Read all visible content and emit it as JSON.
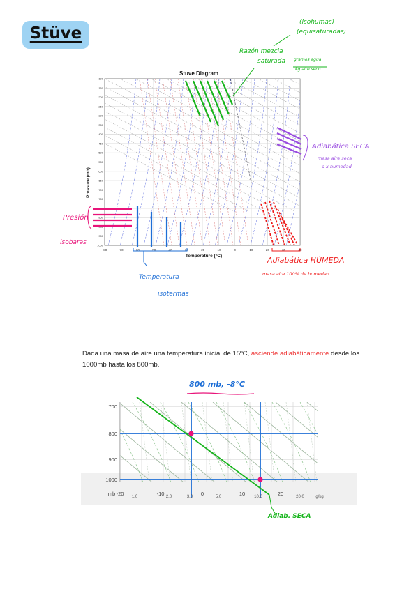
{
  "title": "Stüve",
  "upper_chart": {
    "title": "Stuve Diagram",
    "ylabel": "Pressure (mb)",
    "xlabel": "Temperature (°C)",
    "x_ticks": [
      "-80",
      "-70",
      "-60",
      "-50",
      "-40",
      "-30",
      "-20",
      "-10",
      "0",
      "10",
      "20",
      "30",
      "40"
    ],
    "y_ticks": [
      "100",
      "150",
      "200",
      "250",
      "300",
      "350",
      "400",
      "450",
      "500",
      "550",
      "600",
      "650",
      "700",
      "750",
      "800",
      "850",
      "900",
      "950",
      "1000"
    ]
  },
  "annotations": {
    "isohumas_1": "(isohumas)",
    "isohumas_2": "(equisaturadas)",
    "razon_1": "Razón mezcla",
    "razon_2": "saturada",
    "razon_3": "gramos agua",
    "razon_4": "kg aire seco",
    "adiabatica_seca": "Adiabática SECA",
    "seca_note_1": "masa aire seca",
    "seca_note_2": "o x humedad",
    "presion": "Presión",
    "isobaras": "isobaras",
    "temperatura": "Temperatura",
    "isotermas": "isotermas",
    "adiabatica_humeda": "Adiabática HÚMEDA",
    "humeda_note": "masa aire 100% de humedad"
  },
  "paragraph": {
    "part1": "Dada una masa de aire una temperatura inicial de 15ºC, ",
    "highlight": "asciende adiabáticamente",
    "part2": " desde los 1000mb hasta los 800mb."
  },
  "lower_chart": {
    "result_note": "800 mb, -8°C",
    "y_ticks": [
      "700",
      "800",
      "900",
      "1000"
    ],
    "x_temp_ticks": [
      "-20",
      "-10",
      "0",
      "10",
      "20"
    ],
    "x_mix_ticks": [
      "1.0",
      "2.0",
      "3.0",
      "5.0",
      "10.0",
      "20.0"
    ],
    "pressure_unit": "mb",
    "mix_unit": "g/kg",
    "adiab_label": "Adiab. SECA"
  },
  "colors": {
    "green": "#17b51c",
    "purple": "#9a4ce0",
    "pink": "#e8147a",
    "blue": "#1f6fd6",
    "red": "#ee1b1b",
    "badge": "#9ed3f3"
  }
}
